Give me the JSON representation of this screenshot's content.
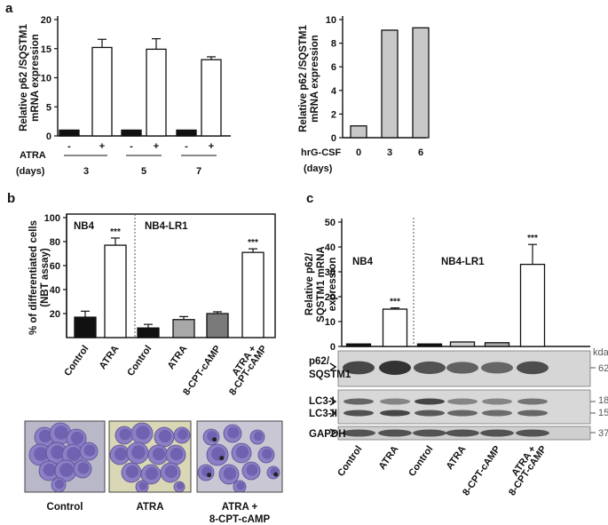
{
  "panel_letters": [
    "a",
    "b",
    "c"
  ],
  "chart_data": [
    {
      "id": "a_left",
      "type": "bar",
      "ylabel_lines": [
        "Relative p62 /SQSTM1",
        "mRNA expression"
      ],
      "ylim": [
        0,
        20
      ],
      "yticks": [
        0,
        5,
        10,
        15,
        20
      ],
      "categories": [
        "-",
        "+",
        "-",
        "+",
        "-",
        "+"
      ],
      "values": [
        1.0,
        15.2,
        1.0,
        14.9,
        1.0,
        13.1
      ],
      "errors": [
        0,
        1.4,
        0,
        1.8,
        0,
        0.5
      ],
      "fills": [
        "#111111",
        "#ffffff",
        "#111111",
        "#ffffff",
        "#111111",
        "#ffffff"
      ],
      "row_label": "ATRA",
      "group_label": "(days)",
      "groups": [
        "3",
        "5",
        "7"
      ],
      "grid": false
    },
    {
      "id": "a_right",
      "type": "bar",
      "ylabel_lines": [
        "Relative p62 /SQSTM1",
        "mRNA expression"
      ],
      "ylim": [
        0,
        10
      ],
      "yticks": [
        0,
        2,
        4,
        6,
        8,
        10
      ],
      "categories": [
        "0",
        "3",
        "6"
      ],
      "values": [
        1.0,
        9.1,
        9.3
      ],
      "errors": [
        0,
        0,
        0
      ],
      "fills": [
        "#c8c8c8",
        "#c8c8c8",
        "#c8c8c8"
      ],
      "row_label": "hrG-CSF",
      "group_label": "(days)",
      "grid": false
    },
    {
      "id": "b",
      "type": "bar",
      "ylabel_lines": [
        "% of differentiated cells",
        "(NBT assay)"
      ],
      "ylim": [
        0,
        100
      ],
      "yticks": [
        20,
        40,
        60,
        80,
        100
      ],
      "categories": [
        "Control",
        "ATRA",
        "Control",
        "ATRA",
        "8-CPT-cAMP",
        "ATRA +\n8-CPT-cAMP"
      ],
      "values": [
        17,
        77,
        8,
        15,
        20,
        71
      ],
      "errors": [
        5,
        6,
        3,
        2.5,
        1.5,
        3
      ],
      "fills": [
        "#111111",
        "#ffffff",
        "#111111",
        "#a8a8a8",
        "#7a7a7a",
        "#ffffff"
      ],
      "significance": [
        "",
        "***",
        "",
        "",
        "",
        "***"
      ],
      "cell_lines": [
        "NB4",
        "NB4-LR1"
      ],
      "grid": false
    },
    {
      "id": "c",
      "type": "bar",
      "ylabel_lines": [
        "Relative p62/",
        "SQSTM1 mRNA",
        "expression"
      ],
      "ylim": [
        0,
        50
      ],
      "yticks": [
        0,
        10,
        20,
        30,
        40,
        50
      ],
      "categories": [
        "Control",
        "ATRA",
        "Control",
        "ATRA",
        "8-CPT-cAMP",
        "ATRA +\n8-CPT-cAMP"
      ],
      "values": [
        1,
        15,
        1,
        1.8,
        1.5,
        33
      ],
      "errors": [
        0,
        0.5,
        0,
        0,
        0,
        8
      ],
      "fills": [
        "#111111",
        "#ffffff",
        "#111111",
        "#cfcfcf",
        "#aaaaaa",
        "#ffffff"
      ],
      "significance": [
        "",
        "***",
        "",
        "",
        "",
        "***"
      ],
      "cell_lines": [
        "NB4",
        "NB4-LR1"
      ],
      "grid": false
    }
  ],
  "micrographs": {
    "labels": [
      "Control",
      "ATRA",
      "ATRA +\n8-CPT-cAMP"
    ]
  },
  "blot": {
    "kda_header": "kda",
    "rows": [
      {
        "label": "p62/\nSQSTM1",
        "kda": [
          "62"
        ]
      },
      {
        "label": "LC3-I\nLC3-II",
        "kda": [
          "18",
          "15"
        ]
      },
      {
        "label": "GAPDH",
        "kda": [
          "37"
        ]
      }
    ]
  }
}
